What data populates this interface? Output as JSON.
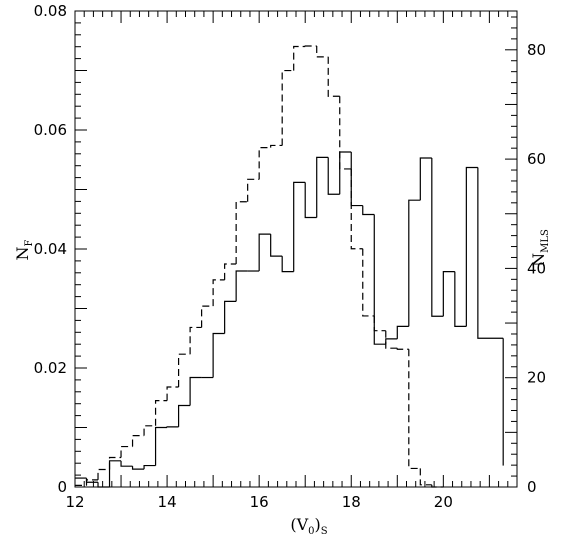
{
  "chart_data": {
    "type": "line",
    "xlabel": "(V₀)S",
    "ylabel": "NF",
    "y2label": "NMLS",
    "xlim": [
      12,
      21.6
    ],
    "ylim": [
      0,
      0.08
    ],
    "y2lim": [
      0,
      87.1
    ],
    "x_ticks": [
      "12",
      "14",
      "16",
      "18",
      "20"
    ],
    "y_ticks": [
      "0",
      "0.02",
      "0.04",
      "0.06",
      "0.08"
    ],
    "y2_ticks": [
      "0",
      "20",
      "40",
      "60",
      "80"
    ],
    "grid": false,
    "legend": "none",
    "series": [
      {
        "style": "solid",
        "axis": "left",
        "edges": [
          12,
          12.25,
          12.5,
          12.75,
          13.0,
          13.25,
          13.5,
          13.75,
          14.0,
          14.25,
          14.5,
          14.75,
          15.0,
          15.25,
          15.5,
          15.75,
          16.0,
          16.25,
          16.5,
          16.75,
          17.0,
          17.25,
          17.5,
          17.75,
          18.0,
          18.25,
          18.5,
          18.75,
          19.0,
          19.25,
          19.5,
          19.75,
          20.0,
          20.25,
          20.5,
          20.75,
          21.3
        ],
        "values": [
          0.0015,
          0.0008,
          0.0,
          0.0044,
          0.0035,
          0.003,
          0.0036,
          0.01,
          0.0101,
          0.0137,
          0.0184,
          0.0184,
          0.0258,
          0.0312,
          0.0363,
          0.0363,
          0.0425,
          0.0388,
          0.0362,
          0.0512,
          0.0453,
          0.0554,
          0.0492,
          0.0563,
          0.0473,
          0.0458,
          0.024,
          0.0249,
          0.027,
          0.0482,
          0.0553,
          0.0287,
          0.0362,
          0.027,
          0.0537,
          0.025,
          0.0036
        ]
      },
      {
        "style": "dashed",
        "axis": "right",
        "edges": [
          12,
          12.25,
          12.5,
          12.75,
          13.0,
          13.25,
          13.5,
          13.75,
          14.0,
          14.25,
          14.5,
          14.75,
          15.0,
          15.25,
          15.5,
          15.75,
          16.0,
          16.25,
          16.5,
          16.75,
          17.0,
          17.25,
          17.5,
          17.75,
          18.0,
          18.25,
          18.5,
          18.75,
          19.0,
          19.25,
          19.5,
          19.75,
          20.0
        ],
        "values": [
          0.3,
          1.3,
          3.2,
          5.4,
          7.4,
          9.4,
          11.2,
          15.8,
          18.3,
          24.3,
          29.2,
          33.1,
          37.9,
          40.8,
          52.2,
          56.3,
          62.1,
          62.5,
          76.2,
          80.6,
          80.7,
          78.7,
          71.5,
          58.2,
          43.6,
          31.3,
          28.6,
          25.4,
          25.2,
          3.4,
          0.4,
          0.0,
          0.0
        ]
      }
    ]
  }
}
